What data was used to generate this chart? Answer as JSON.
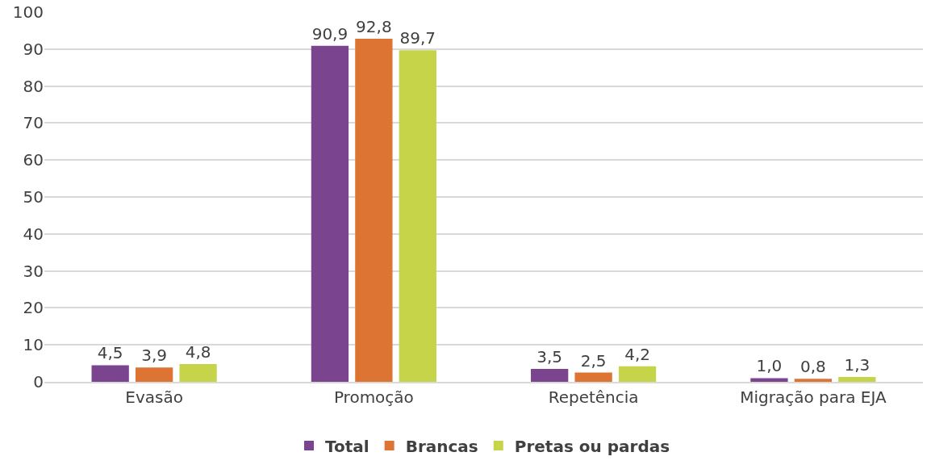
{
  "chart_data": {
    "type": "bar",
    "categories": [
      "Evasão",
      "Promoção",
      "Repetência",
      "Migração para EJA"
    ],
    "series": [
      {
        "name": "Total",
        "color": "#7b448f",
        "values": [
          4.5,
          90.9,
          3.5,
          1.0
        ],
        "value_labels": [
          "4,5",
          "90,9",
          "3,5",
          "1,0"
        ]
      },
      {
        "name": "Brancas",
        "color": "#dd7434",
        "values": [
          3.9,
          92.8,
          2.5,
          0.8
        ],
        "value_labels": [
          "3,9",
          "92,8",
          "2,5",
          "0,8"
        ]
      },
      {
        "name": "Pretas ou pardas",
        "color": "#c6d44a",
        "values": [
          4.8,
          89.7,
          4.2,
          1.3
        ],
        "value_labels": [
          "4,8",
          "89,7",
          "4,2",
          "1,3"
        ]
      }
    ],
    "ylim": [
      0,
      100
    ],
    "yticks": [
      0,
      10,
      20,
      30,
      40,
      50,
      60,
      70,
      80,
      90,
      100
    ],
    "grid": "y",
    "legend": "bottom"
  }
}
